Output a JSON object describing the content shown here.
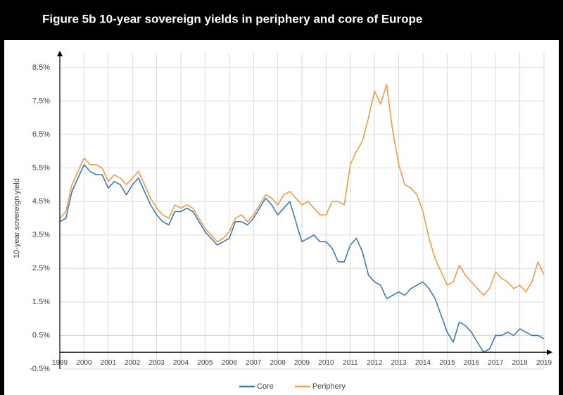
{
  "chart_data": {
    "type": "line",
    "title": "Figure 5b  10-year sovereign yields in periphery and core of Europe",
    "y_label": "10-year sovereign yield",
    "x": [
      1999,
      1999.25,
      1999.5,
      1999.75,
      2000,
      2000.25,
      2000.5,
      2000.75,
      2001,
      2001.25,
      2001.5,
      2001.75,
      2002,
      2002.25,
      2002.5,
      2002.75,
      2003,
      2003.25,
      2003.5,
      2003.75,
      2004,
      2004.25,
      2004.5,
      2004.75,
      2005,
      2005.25,
      2005.5,
      2005.75,
      2006,
      2006.25,
      2006.5,
      2006.75,
      2007,
      2007.25,
      2007.5,
      2007.75,
      2008,
      2008.25,
      2008.5,
      2008.75,
      2009,
      2009.25,
      2009.5,
      2009.75,
      2010,
      2010.25,
      2010.5,
      2010.75,
      2011,
      2011.25,
      2011.5,
      2011.75,
      2012,
      2012.25,
      2012.5,
      2012.75,
      2013,
      2013.25,
      2013.5,
      2013.75,
      2014,
      2014.25,
      2014.5,
      2014.75,
      2015,
      2015.25,
      2015.5,
      2015.75,
      2016,
      2016.25,
      2016.5,
      2016.75,
      2017,
      2017.25,
      2017.5,
      2017.75,
      2018,
      2018.25,
      2018.5,
      2018.75,
      2019
    ],
    "series": [
      {
        "name": "Core",
        "color": "#3f78b8",
        "values": [
          3.9,
          4.0,
          4.8,
          5.2,
          5.6,
          5.4,
          5.3,
          5.3,
          4.9,
          5.1,
          5.0,
          4.7,
          5.0,
          5.2,
          4.8,
          4.4,
          4.1,
          3.9,
          3.8,
          4.2,
          4.2,
          4.3,
          4.2,
          3.9,
          3.6,
          3.4,
          3.2,
          3.3,
          3.4,
          3.9,
          3.9,
          3.8,
          4.0,
          4.3,
          4.6,
          4.4,
          4.1,
          4.3,
          4.5,
          3.9,
          3.3,
          3.4,
          3.5,
          3.3,
          3.3,
          3.1,
          2.7,
          2.7,
          3.2,
          3.4,
          3.0,
          2.3,
          2.1,
          2.0,
          1.6,
          1.7,
          1.8,
          1.7,
          1.9,
          2.0,
          2.1,
          1.9,
          1.6,
          1.1,
          0.6,
          0.3,
          0.9,
          0.8,
          0.6,
          0.3,
          0.0,
          0.1,
          0.5,
          0.5,
          0.6,
          0.5,
          0.7,
          0.6,
          0.5,
          0.5,
          0.4
        ]
      },
      {
        "name": "Periphery",
        "color": "#f29b48",
        "values": [
          4.0,
          4.2,
          5.0,
          5.4,
          5.8,
          5.6,
          5.6,
          5.5,
          5.1,
          5.3,
          5.2,
          5.0,
          5.2,
          5.4,
          5.0,
          4.6,
          4.3,
          4.1,
          4.0,
          4.4,
          4.3,
          4.4,
          4.3,
          4.0,
          3.7,
          3.5,
          3.3,
          3.4,
          3.6,
          4.0,
          4.1,
          3.9,
          4.1,
          4.4,
          4.7,
          4.6,
          4.4,
          4.7,
          4.8,
          4.6,
          4.4,
          4.5,
          4.3,
          4.1,
          4.1,
          4.5,
          4.5,
          4.4,
          5.6,
          6.0,
          6.3,
          7.0,
          7.8,
          7.4,
          8.0,
          6.6,
          5.6,
          5.0,
          4.9,
          4.7,
          4.2,
          3.4,
          2.8,
          2.4,
          2.0,
          2.1,
          2.6,
          2.3,
          2.1,
          1.9,
          1.7,
          1.9,
          2.4,
          2.2,
          2.1,
          1.9,
          2.0,
          1.8,
          2.1,
          2.7,
          2.3
        ]
      }
    ],
    "xlim": [
      1999,
      2019
    ],
    "xticks": [
      1999,
      2000,
      2001,
      2002,
      2003,
      2004,
      2005,
      2006,
      2007,
      2008,
      2009,
      2010,
      2011,
      2012,
      2013,
      2014,
      2015,
      2016,
      2017,
      2018,
      2019
    ],
    "ylim": [
      -0.5,
      8.5
    ],
    "yticks": [
      {
        "value": -0.5,
        "label": "-0.5%"
      },
      {
        "value": 0.5,
        "label": "0.5%"
      },
      {
        "value": 1.5,
        "label": "1.5%"
      },
      {
        "value": 2.5,
        "label": "2.5%"
      },
      {
        "value": 3.5,
        "label": "3.5%"
      },
      {
        "value": 4.5,
        "label": "4.5%"
      },
      {
        "value": 5.5,
        "label": "5.5%"
      },
      {
        "value": 6.5,
        "label": "6.5%"
      },
      {
        "value": 7.5,
        "label": "7.5%"
      },
      {
        "value": 8.5,
        "label": "8.5%"
      }
    ],
    "grid": true,
    "legend": "bottom"
  }
}
